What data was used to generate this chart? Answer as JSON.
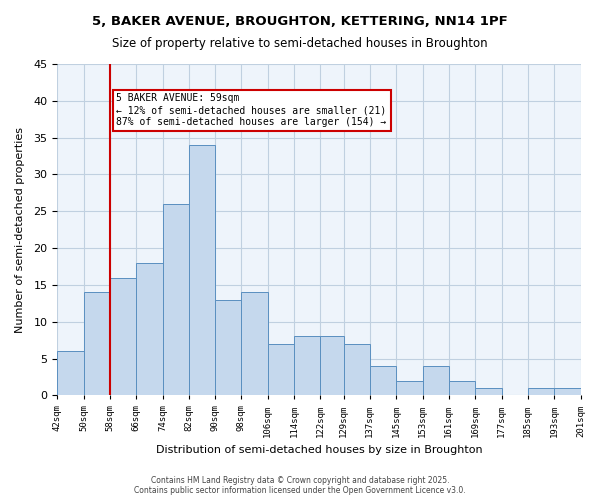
{
  "title1": "5, BAKER AVENUE, BROUGHTON, KETTERING, NN14 1PF",
  "title2": "Size of property relative to semi-detached houses in Broughton",
  "xlabel": "Distribution of semi-detached houses by size in Broughton",
  "ylabel": "Number of semi-detached properties",
  "bin_edges": [
    42,
    50,
    58,
    66,
    74,
    82,
    90,
    98,
    106,
    114,
    122,
    129,
    137,
    145,
    153,
    161,
    169,
    177,
    185,
    193,
    201
  ],
  "bar_heights": [
    6,
    14,
    16,
    18,
    26,
    34,
    13,
    14,
    7,
    8,
    8,
    7,
    4,
    2,
    4,
    2,
    1,
    0,
    1,
    1
  ],
  "bar_color": "#c5d8ed",
  "bar_edge_color": "#5a8fc0",
  "grid_color": "#c0d0e0",
  "bg_color": "#eef4fb",
  "property_line_x": 58,
  "annotation_title": "5 BAKER AVENUE: 59sqm",
  "annotation_line1": "← 12% of semi-detached houses are smaller (21)",
  "annotation_line2": "87% of semi-detached houses are larger (154) →",
  "annotation_box_color": "#ffffff",
  "annotation_box_edge": "#cc0000",
  "vline_color": "#cc0000",
  "tick_labels": [
    "42sqm",
    "50sqm",
    "58sqm",
    "66sqm",
    "74sqm",
    "82sqm",
    "90sqm",
    "98sqm",
    "106sqm",
    "114sqm",
    "122sqm",
    "129sqm",
    "137sqm",
    "145sqm",
    "153sqm",
    "161sqm",
    "169sqm",
    "177sqm",
    "185sqm",
    "193sqm",
    "201sqm"
  ],
  "ylim": [
    0,
    45
  ],
  "yticks": [
    0,
    5,
    10,
    15,
    20,
    25,
    30,
    35,
    40,
    45
  ],
  "footer": "Contains HM Land Registry data © Crown copyright and database right 2025.\nContains public sector information licensed under the Open Government Licence v3.0."
}
